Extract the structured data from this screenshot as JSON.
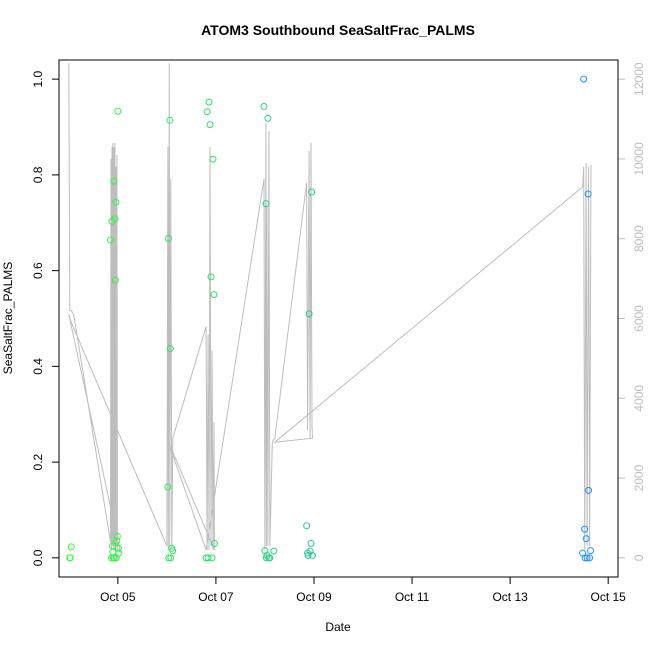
{
  "chart_data": {
    "type": "scatter",
    "title": "ATOM3 Southbound SeaSaltFrac_PALMS",
    "xlabel": "Date",
    "ylabel": "SeaSaltFrac_PALMS",
    "x_unit": "days since Oct 4 00:00 (tick labels are dates)",
    "xlim": [
      3.8,
      15.2
    ],
    "ylim": [
      -0.04,
      1.04
    ],
    "y2lim": [
      -480,
      12480
    ],
    "x_ticks": [
      {
        "value": 5,
        "label": "Oct 05"
      },
      {
        "value": 7,
        "label": "Oct 07"
      },
      {
        "value": 9,
        "label": "Oct 09"
      },
      {
        "value": 11,
        "label": "Oct 11"
      },
      {
        "value": 13,
        "label": "Oct 13"
      },
      {
        "value": 15,
        "label": "Oct 15"
      }
    ],
    "y_ticks": [
      {
        "value": 0.0,
        "label": "0.0"
      },
      {
        "value": 0.2,
        "label": "0.2"
      },
      {
        "value": 0.4,
        "label": "0.4"
      },
      {
        "value": 0.6,
        "label": "0.6"
      },
      {
        "value": 0.8,
        "label": "0.8"
      },
      {
        "value": 1.0,
        "label": "1.0"
      }
    ],
    "y2_ticks": [
      {
        "value": 0,
        "label": "0"
      },
      {
        "value": 2000,
        "label": "2000"
      },
      {
        "value": 4000,
        "label": "4000"
      },
      {
        "value": 6000,
        "label": "6000"
      },
      {
        "value": 8000,
        "label": "8000"
      },
      {
        "value": 10000,
        "label": "10000"
      },
      {
        "value": 12000,
        "label": "12000"
      }
    ],
    "grid": false,
    "legend": "none",
    "colors": {
      "points_start": "#33ff33",
      "points_end": "#1e90ff",
      "altitude_line": "#bdbdbd",
      "axes": "#000000"
    },
    "points": [
      {
        "x": 4.02,
        "y": 0.0
      },
      {
        "x": 4.03,
        "y": 0.0
      },
      {
        "x": 4.05,
        "y": 0.023
      },
      {
        "x": 4.85,
        "y": 0.664
      },
      {
        "x": 4.87,
        "y": 0.0
      },
      {
        "x": 4.88,
        "y": 0.703
      },
      {
        "x": 4.89,
        "y": 0.025
      },
      {
        "x": 4.9,
        "y": 0.012
      },
      {
        "x": 4.91,
        "y": 0.0
      },
      {
        "x": 4.92,
        "y": 0.787
      },
      {
        "x": 4.93,
        "y": 0.0
      },
      {
        "x": 4.94,
        "y": 0.708
      },
      {
        "x": 4.95,
        "y": 0.58
      },
      {
        "x": 4.96,
        "y": 0.743
      },
      {
        "x": 4.97,
        "y": 0.0
      },
      {
        "x": 4.98,
        "y": 0.035
      },
      {
        "x": 4.99,
        "y": 0.045
      },
      {
        "x": 5.0,
        "y": 0.933
      },
      {
        "x": 5.01,
        "y": 0.02
      },
      {
        "x": 5.02,
        "y": 0.01
      },
      {
        "x": 6.02,
        "y": 0.148
      },
      {
        "x": 6.03,
        "y": 0.667
      },
      {
        "x": 6.04,
        "y": 0.0
      },
      {
        "x": 6.06,
        "y": 0.914
      },
      {
        "x": 6.07,
        "y": 0.437
      },
      {
        "x": 6.08,
        "y": 0.0
      },
      {
        "x": 6.1,
        "y": 0.02
      },
      {
        "x": 6.12,
        "y": 0.015
      },
      {
        "x": 6.8,
        "y": 0.0
      },
      {
        "x": 6.82,
        "y": 0.932
      },
      {
        "x": 6.84,
        "y": 0.0
      },
      {
        "x": 6.86,
        "y": 0.952
      },
      {
        "x": 6.88,
        "y": 0.905
      },
      {
        "x": 6.9,
        "y": 0.587
      },
      {
        "x": 6.92,
        "y": 0.0
      },
      {
        "x": 6.94,
        "y": 0.833
      },
      {
        "x": 6.96,
        "y": 0.55
      },
      {
        "x": 6.97,
        "y": 0.03
      },
      {
        "x": 7.98,
        "y": 0.943
      },
      {
        "x": 8.0,
        "y": 0.015
      },
      {
        "x": 8.02,
        "y": 0.74
      },
      {
        "x": 8.03,
        "y": 0.0
      },
      {
        "x": 8.04,
        "y": 0.005
      },
      {
        "x": 8.06,
        "y": 0.918
      },
      {
        "x": 8.08,
        "y": 0.0
      },
      {
        "x": 8.1,
        "y": 0.0
      },
      {
        "x": 8.18,
        "y": 0.014
      },
      {
        "x": 8.85,
        "y": 0.067
      },
      {
        "x": 8.87,
        "y": 0.01
      },
      {
        "x": 8.88,
        "y": 0.005
      },
      {
        "x": 8.9,
        "y": 0.51
      },
      {
        "x": 8.92,
        "y": 0.014
      },
      {
        "x": 8.94,
        "y": 0.03
      },
      {
        "x": 8.95,
        "y": 0.764
      },
      {
        "x": 8.97,
        "y": 0.005
      },
      {
        "x": 14.48,
        "y": 0.01
      },
      {
        "x": 14.5,
        "y": 1.0
      },
      {
        "x": 14.52,
        "y": 0.06
      },
      {
        "x": 14.53,
        "y": 0.0
      },
      {
        "x": 14.55,
        "y": 0.04
      },
      {
        "x": 14.57,
        "y": 0.0
      },
      {
        "x": 14.59,
        "y": 0.76
      },
      {
        "x": 14.6,
        "y": 0.141
      },
      {
        "x": 14.62,
        "y": 0.0
      },
      {
        "x": 14.64,
        "y": 0.015
      }
    ],
    "altitude_line": [
      [
        4.0,
        12400
      ],
      [
        4.02,
        6200
      ],
      [
        4.05,
        6200
      ],
      [
        4.1,
        6100
      ],
      [
        4.85,
        400
      ],
      [
        4.86,
        10000
      ],
      [
        4.87,
        200
      ],
      [
        4.88,
        10300
      ],
      [
        4.89,
        300
      ],
      [
        4.9,
        10400
      ],
      [
        4.91,
        200
      ],
      [
        4.92,
        10300
      ],
      [
        4.93,
        300
      ],
      [
        4.94,
        10400
      ],
      [
        4.95,
        200
      ],
      [
        4.96,
        9800
      ],
      [
        4.97,
        300
      ],
      [
        4.98,
        10100
      ],
      [
        4.99,
        300
      ],
      [
        5.0,
        200
      ],
      [
        5.05,
        150
      ],
      [
        4.0,
        6100
      ],
      [
        4.05,
        5900
      ],
      [
        6.0,
        300
      ],
      [
        6.02,
        10300
      ],
      [
        6.03,
        200
      ],
      [
        6.05,
        12400
      ],
      [
        6.06,
        300
      ],
      [
        6.08,
        9500
      ],
      [
        6.1,
        200
      ],
      [
        6.12,
        3000
      ],
      [
        6.8,
        5800
      ],
      [
        6.82,
        200
      ],
      [
        6.84,
        5600
      ],
      [
        6.86,
        200
      ],
      [
        6.88,
        10300
      ],
      [
        6.9,
        300
      ],
      [
        6.92,
        5200
      ],
      [
        6.94,
        200
      ],
      [
        6.96,
        3400
      ],
      [
        6.97,
        200
      ],
      [
        6.0,
        3000
      ],
      [
        6.8,
        200
      ],
      [
        7.98,
        9500
      ],
      [
        8.0,
        200
      ],
      [
        8.02,
        10900
      ],
      [
        8.03,
        300
      ],
      [
        8.04,
        8800
      ],
      [
        8.06,
        300
      ],
      [
        8.08,
        10700
      ],
      [
        8.1,
        300
      ],
      [
        8.15,
        2900
      ],
      [
        8.2,
        3000
      ],
      [
        8.85,
        9400
      ],
      [
        8.87,
        3200
      ],
      [
        8.9,
        10200
      ],
      [
        8.92,
        3000
      ],
      [
        8.94,
        10400
      ],
      [
        8.96,
        3300
      ],
      [
        8.97,
        3000
      ],
      [
        8.2,
        2900
      ],
      [
        14.48,
        9300
      ],
      [
        14.5,
        9800
      ],
      [
        14.52,
        200
      ],
      [
        14.55,
        9900
      ],
      [
        14.57,
        300
      ],
      [
        14.6,
        9800
      ],
      [
        14.62,
        300
      ],
      [
        14.65,
        9850
      ]
    ]
  }
}
